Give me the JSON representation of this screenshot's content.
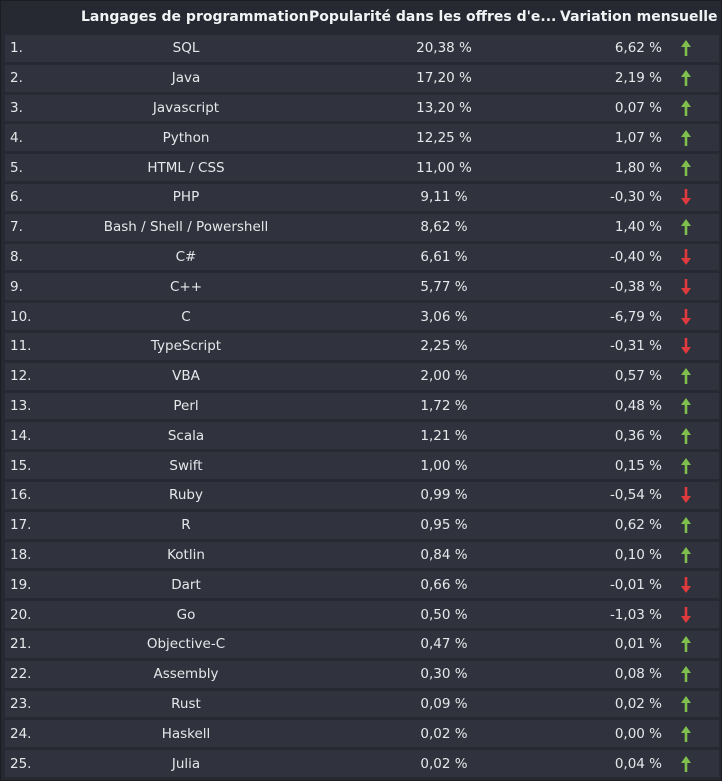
{
  "table": {
    "headers": {
      "rank": "",
      "language": "Langages de programmation",
      "popularity": "Popularité dans les offres d'e...",
      "variation": "Variation mensuelle"
    },
    "colors": {
      "up": "#7fbf4d",
      "down": "#e0393e"
    },
    "rows": [
      {
        "rank": "1.",
        "language": "SQL",
        "popularity": "20,38 %",
        "variation": "6,62 %",
        "trend": "up"
      },
      {
        "rank": "2.",
        "language": "Java",
        "popularity": "17,20 %",
        "variation": "2,19 %",
        "trend": "up"
      },
      {
        "rank": "3.",
        "language": "Javascript",
        "popularity": "13,20 %",
        "variation": "0,07 %",
        "trend": "up"
      },
      {
        "rank": "4.",
        "language": "Python",
        "popularity": "12,25 %",
        "variation": "1,07 %",
        "trend": "up"
      },
      {
        "rank": "5.",
        "language": "HTML / CSS",
        "popularity": "11,00 %",
        "variation": "1,80 %",
        "trend": "up"
      },
      {
        "rank": "6.",
        "language": "PHP",
        "popularity": "9,11 %",
        "variation": "-0,30 %",
        "trend": "down"
      },
      {
        "rank": "7.",
        "language": "Bash / Shell / Powershell",
        "popularity": "8,62 %",
        "variation": "1,40 %",
        "trend": "up"
      },
      {
        "rank": "8.",
        "language": "C#",
        "popularity": "6,61 %",
        "variation": "-0,40 %",
        "trend": "down"
      },
      {
        "rank": "9.",
        "language": "C++",
        "popularity": "5,77 %",
        "variation": "-0,38 %",
        "trend": "down"
      },
      {
        "rank": "10.",
        "language": "C",
        "popularity": "3,06 %",
        "variation": "-6,79 %",
        "trend": "down"
      },
      {
        "rank": "11.",
        "language": "TypeScript",
        "popularity": "2,25 %",
        "variation": "-0,31 %",
        "trend": "down"
      },
      {
        "rank": "12.",
        "language": "VBA",
        "popularity": "2,00 %",
        "variation": "0,57 %",
        "trend": "up"
      },
      {
        "rank": "13.",
        "language": "Perl",
        "popularity": "1,72 %",
        "variation": "0,48 %",
        "trend": "up"
      },
      {
        "rank": "14.",
        "language": "Scala",
        "popularity": "1,21 %",
        "variation": "0,36 %",
        "trend": "up"
      },
      {
        "rank": "15.",
        "language": "Swift",
        "popularity": "1,00 %",
        "variation": "0,15 %",
        "trend": "up"
      },
      {
        "rank": "16.",
        "language": "Ruby",
        "popularity": "0,99 %",
        "variation": "-0,54 %",
        "trend": "down"
      },
      {
        "rank": "17.",
        "language": "R",
        "popularity": "0,95 %",
        "variation": "0,62 %",
        "trend": "up"
      },
      {
        "rank": "18.",
        "language": "Kotlin",
        "popularity": "0,84 %",
        "variation": "0,10 %",
        "trend": "up"
      },
      {
        "rank": "19.",
        "language": "Dart",
        "popularity": "0,66 %",
        "variation": "-0,01 %",
        "trend": "down"
      },
      {
        "rank": "20.",
        "language": "Go",
        "popularity": "0,50 %",
        "variation": "-1,03 %",
        "trend": "down"
      },
      {
        "rank": "21.",
        "language": "Objective-C",
        "popularity": "0,47 %",
        "variation": "0,01 %",
        "trend": "up"
      },
      {
        "rank": "22.",
        "language": "Assembly",
        "popularity": "0,30 %",
        "variation": "0,08 %",
        "trend": "up"
      },
      {
        "rank": "23.",
        "language": "Rust",
        "popularity": "0,09 %",
        "variation": "0,02 %",
        "trend": "up"
      },
      {
        "rank": "24.",
        "language": "Haskell",
        "popularity": "0,02 %",
        "variation": "0,00 %",
        "trend": "up"
      },
      {
        "rank": "25.",
        "language": "Julia",
        "popularity": "0,02 %",
        "variation": "0,04 %",
        "trend": "up"
      }
    ]
  }
}
